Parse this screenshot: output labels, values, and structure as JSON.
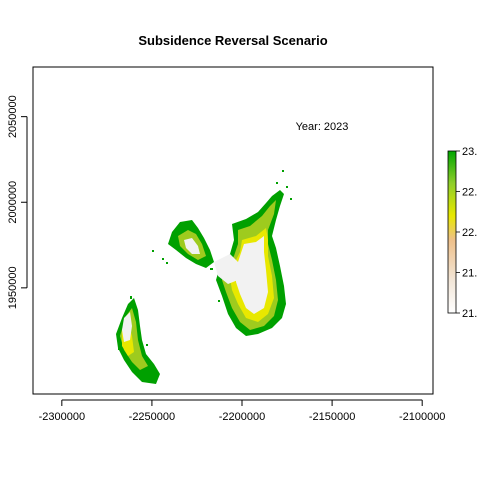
{
  "title": "Subsidence Reversal Scenario",
  "annotation": "Year: 2023",
  "x_axis": {
    "ticks": [
      -2300000,
      -2250000,
      -2200000,
      -2150000,
      -2100000
    ],
    "tick_labels": [
      "-2300000",
      "-2250000",
      "-2200000",
      "-2150000",
      "-2100000"
    ],
    "range": [
      -2316000,
      -2094000
    ]
  },
  "y_axis": {
    "ticks": [
      1950000,
      2000000,
      2050000
    ],
    "tick_labels": [
      "1950000",
      "2000000",
      "2050000"
    ],
    "range": [
      1888000,
      2079000
    ]
  },
  "legend": {
    "tick_labels": [
      "23.",
      "22.",
      "22.",
      "21.",
      "21."
    ],
    "tick_values": [
      1.0,
      0.75,
      0.5,
      0.25,
      0.0
    ],
    "colors": [
      "#00a600",
      "#b8d23d",
      "#e8e800",
      "#eec08a",
      "#f2f2f2"
    ]
  },
  "colors": {
    "background_land": "#f2f2f2",
    "low": "#e8e800",
    "mid": "#9ecb1e",
    "high": "#00a000"
  }
}
